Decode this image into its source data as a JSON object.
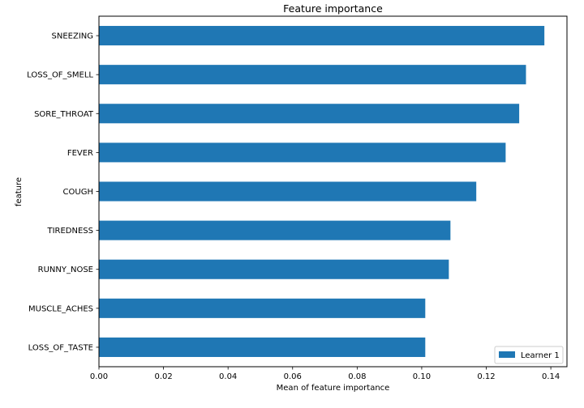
{
  "chart_data": {
    "type": "bar",
    "orientation": "horizontal",
    "title": "Feature importance",
    "xlabel": "Mean of feature importance",
    "ylabel": "feature",
    "xlim": [
      0.0,
      0.145
    ],
    "x_ticks": [
      0.0,
      0.02,
      0.04,
      0.06,
      0.08,
      0.1,
      0.12,
      0.14
    ],
    "x_tick_labels": [
      "0.00",
      "0.02",
      "0.04",
      "0.06",
      "0.08",
      "0.10",
      "0.12",
      "0.14"
    ],
    "grid": false,
    "legend_position": "bottom-right",
    "bar_color": "#1f77b4",
    "categories": [
      "SNEEZING",
      "LOSS_OF_SMELL",
      "SORE_THROAT",
      "FEVER",
      "COUGH",
      "TIREDNESS",
      "RUNNY_NOSE",
      "MUSCLE_ACHES",
      "LOSS_OF_TASTE"
    ],
    "series": [
      {
        "name": "Learner 1",
        "values": [
          0.138,
          0.1323,
          0.1302,
          0.126,
          0.1169,
          0.1089,
          0.1084,
          0.1011,
          0.1011
        ]
      }
    ]
  }
}
